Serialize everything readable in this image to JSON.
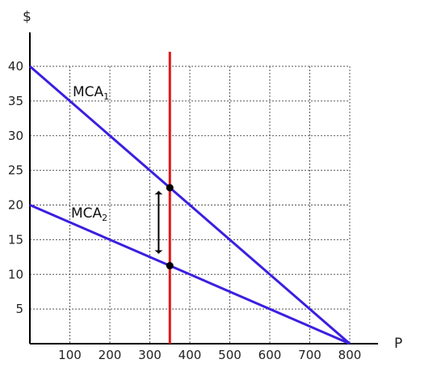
{
  "chart_data": {
    "type": "line",
    "title": "",
    "xlabel": "P",
    "ylabel": "$",
    "xlim": [
      0,
      800
    ],
    "ylim": [
      0,
      40
    ],
    "xticks": [
      100,
      200,
      300,
      400,
      500,
      600,
      700,
      800
    ],
    "yticks": [
      5,
      10,
      15,
      20,
      25,
      30,
      35,
      40
    ],
    "grid": true,
    "series": [
      {
        "name": "MCA",
        "subscript": "1",
        "color": "#3a1fe0",
        "x": [
          0,
          800
        ],
        "y": [
          40,
          0
        ]
      },
      {
        "name": "MCA",
        "subscript": "2",
        "color": "#3a1fe0",
        "x": [
          0,
          800
        ],
        "y": [
          20,
          0
        ]
      }
    ],
    "vertical_line": {
      "x": 350,
      "color": "#e01818"
    },
    "points": [
      {
        "x": 350,
        "y": 22.5
      },
      {
        "x": 350,
        "y": 11.25
      }
    ],
    "interval_bar": {
      "x": 322,
      "y_low": 13,
      "y_high": 22
    }
  }
}
